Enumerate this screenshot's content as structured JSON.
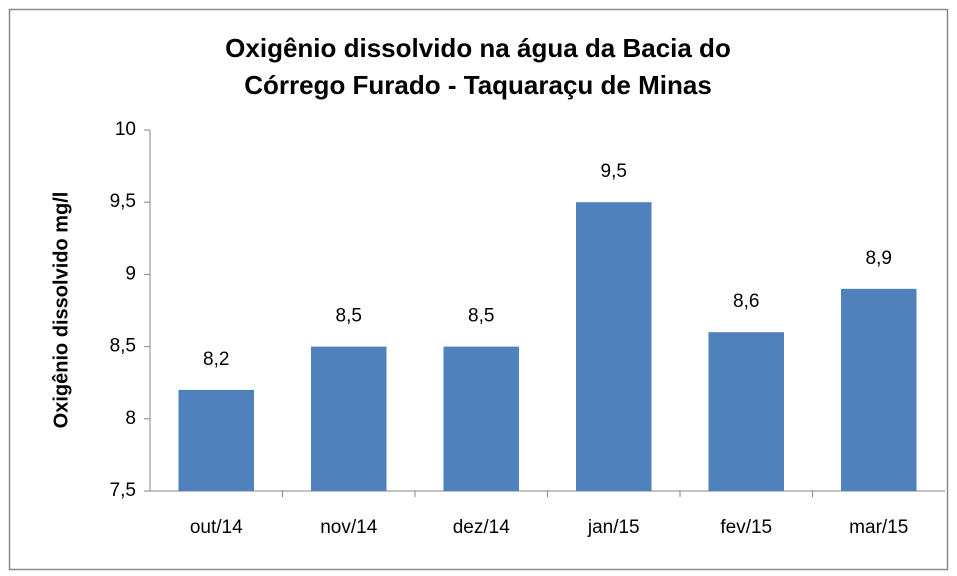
{
  "chart_data": {
    "type": "bar",
    "title": [
      "Oxigênio dissolvido na água da Bacia do",
      "Córrego Furado - Taquaraçu de Minas"
    ],
    "y_label": "Oxigênio dissolvido mg/l",
    "categories": [
      "out/14",
      "nov/14",
      "dez/14",
      "jan/15",
      "fev/15",
      "mar/15"
    ],
    "values": [
      8.2,
      8.5,
      8.5,
      9.5,
      8.6,
      8.9
    ],
    "value_labels": [
      "8,2",
      "8,5",
      "8,5",
      "9,5",
      "8,6",
      "8,9"
    ],
    "color": "#4f81bd",
    "ylim": [
      7.5,
      10
    ],
    "yticks": [
      {
        "value": 7.5,
        "label": "7,5"
      },
      8,
      {
        "value": 8.5,
        "label": "8,5"
      },
      9,
      {
        "value": 9.5,
        "label": "9,5"
      },
      10
    ],
    "grid": false
  }
}
